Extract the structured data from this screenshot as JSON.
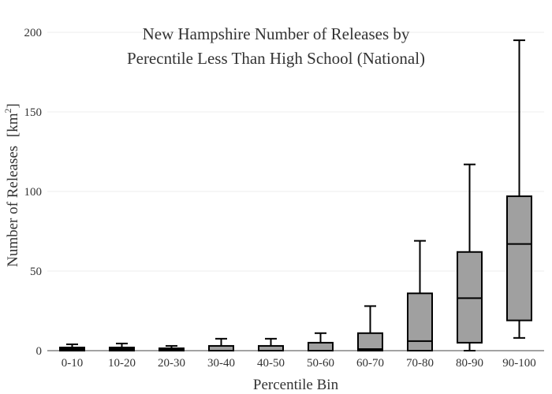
{
  "chart_data": {
    "type": "box",
    "title_lines": [
      "New Hampshire Number of Releases by",
      "Perecntile Less Than High School (National)"
    ],
    "xlabel": "Percentile Bin",
    "ylabel_main": "Number of Releases",
    "ylabel_unit": "[km",
    "ylabel_sup": "2",
    "ylabel_close": "]",
    "ylim": [
      0,
      200
    ],
    "yticks": [
      0,
      50,
      100,
      150,
      200
    ],
    "grid": true,
    "box_color": "#a0a0a0",
    "categories": [
      "0-10",
      "10-20",
      "20-30",
      "30-40",
      "40-50",
      "50-60",
      "60-70",
      "70-80",
      "80-90",
      "90-100"
    ],
    "boxes": [
      {
        "min": 0,
        "q1": 0,
        "median": 1,
        "q3": 2,
        "max": 4
      },
      {
        "min": 0,
        "q1": 0,
        "median": 1,
        "q3": 2,
        "max": 4.5
      },
      {
        "min": 0,
        "q1": 0,
        "median": 1,
        "q3": 1.5,
        "max": 3
      },
      {
        "min": 0,
        "q1": 0,
        "median": 0,
        "q3": 3,
        "max": 7.5
      },
      {
        "min": 0,
        "q1": 0,
        "median": 0,
        "q3": 3,
        "max": 7.5
      },
      {
        "min": 0,
        "q1": 0,
        "median": 0,
        "q3": 5,
        "max": 11
      },
      {
        "min": 0,
        "q1": 0,
        "median": 1,
        "q3": 11,
        "max": 28
      },
      {
        "min": 0,
        "q1": 0,
        "median": 6,
        "q3": 36,
        "max": 69
      },
      {
        "min": 0,
        "q1": 5,
        "median": 33,
        "q3": 62,
        "max": 117
      },
      {
        "min": 8,
        "q1": 19,
        "median": 67,
        "q3": 97,
        "max": 195
      }
    ]
  }
}
